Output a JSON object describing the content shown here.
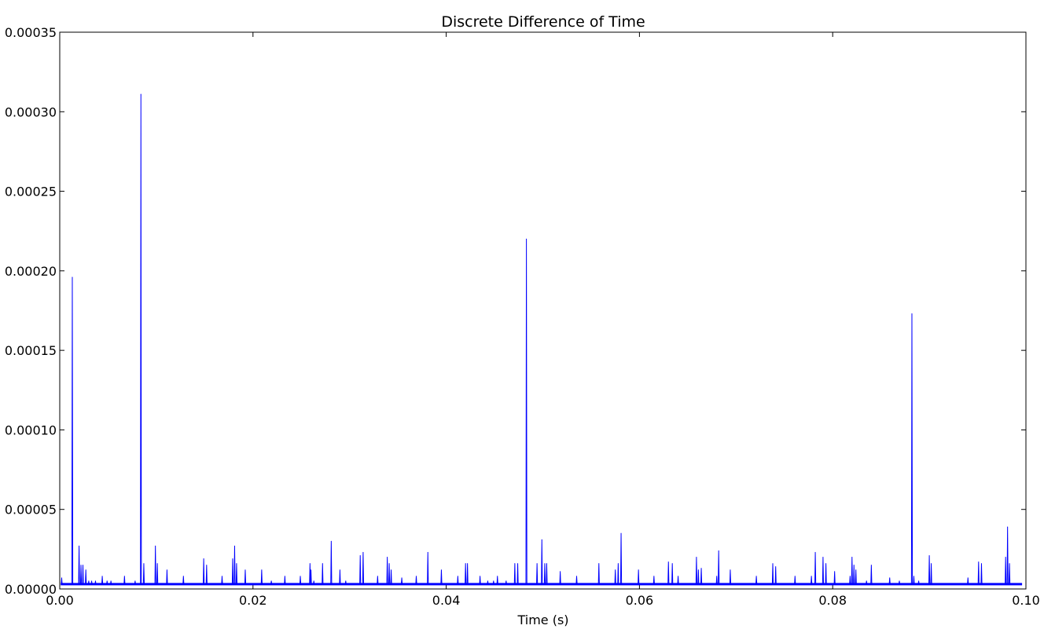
{
  "chart_data": {
    "type": "line",
    "title": "Discrete Difference of Time",
    "xlabel": "Time (s)",
    "ylabel": "",
    "xlim": [
      0.0,
      0.1
    ],
    "ylim": [
      0.0,
      0.00035
    ],
    "x_ticks": [
      0.0,
      0.02,
      0.04,
      0.06,
      0.08,
      0.1
    ],
    "x_tick_labels": [
      "0.00",
      "0.02",
      "0.04",
      "0.06",
      "0.08",
      "0.10"
    ],
    "y_ticks": [
      0.0,
      5e-05,
      0.0001,
      0.00015,
      0.0002,
      0.00025,
      0.0003,
      0.00035
    ],
    "y_tick_labels": [
      "0.00000",
      "0.00005",
      "0.00010",
      "0.00015",
      "0.00020",
      "0.00025",
      "0.00030",
      "0.00035"
    ],
    "grid": false,
    "line_color": "#0000ff",
    "baseline": 3e-06,
    "series": [
      {
        "x": [
          0.0002,
          0.0013,
          0.002,
          0.0022,
          0.0024,
          0.0027,
          0.003,
          0.0033,
          0.0037,
          0.0044,
          0.0049,
          0.0053,
          0.0067,
          0.0078,
          0.0084,
          0.0087,
          0.0099,
          0.0101,
          0.0111,
          0.0128,
          0.0149,
          0.0152,
          0.0168,
          0.0179,
          0.0181,
          0.0183,
          0.0192,
          0.0209,
          0.0219,
          0.0233,
          0.0249,
          0.0259,
          0.026,
          0.0263,
          0.0272,
          0.0281,
          0.029,
          0.0296,
          0.0311,
          0.0314,
          0.0329,
          0.0339,
          0.0341,
          0.0343,
          0.0354,
          0.0369,
          0.0381,
          0.0395,
          0.0412,
          0.042,
          0.0422,
          0.0435,
          0.0443,
          0.0449,
          0.0453,
          0.0462,
          0.0471,
          0.0474,
          0.0483,
          0.0494,
          0.0499,
          0.0502,
          0.0504,
          0.0518,
          0.0535,
          0.0558,
          0.0575,
          0.0578,
          0.0581,
          0.0599,
          0.0615,
          0.063,
          0.0634,
          0.064,
          0.0659,
          0.0661,
          0.0664,
          0.068,
          0.0682,
          0.0694,
          0.0721,
          0.0738,
          0.0741,
          0.0761,
          0.0778,
          0.0782,
          0.079,
          0.0793,
          0.0802,
          0.0818,
          0.082,
          0.0822,
          0.0824,
          0.0835,
          0.084,
          0.0859,
          0.0869,
          0.0882,
          0.0884,
          0.0889,
          0.09,
          0.0902,
          0.094,
          0.0951,
          0.0954,
          0.0979,
          0.0981,
          0.0983
        ],
        "y": [
          7e-06,
          0.000196,
          2.7e-05,
          1.5e-05,
          1.5e-05,
          1.2e-05,
          5e-06,
          5e-06,
          5e-06,
          8e-06,
          5e-06,
          5e-06,
          8e-06,
          5e-06,
          0.000311,
          1.6e-05,
          2.7e-05,
          1.6e-05,
          1.2e-05,
          8e-06,
          1.9e-05,
          1.5e-05,
          8e-06,
          1.9e-05,
          2.7e-05,
          1.6e-05,
          1.2e-05,
          1.2e-05,
          5e-06,
          8e-06,
          8e-06,
          1.6e-05,
          1.2e-05,
          5e-06,
          1.6e-05,
          3e-05,
          1.2e-05,
          5e-06,
          2.1e-05,
          2.3e-05,
          8e-06,
          2e-05,
          1.6e-05,
          1.2e-05,
          7e-06,
          8e-06,
          2.3e-05,
          1.2e-05,
          8e-06,
          1.6e-05,
          1.6e-05,
          8e-06,
          5e-06,
          5e-06,
          8e-06,
          5e-06,
          1.6e-05,
          1.6e-05,
          0.00022,
          1.6e-05,
          3.1e-05,
          1.6e-05,
          1.6e-05,
          1.1e-05,
          8e-06,
          1.6e-05,
          1.2e-05,
          1.6e-05,
          3.5e-05,
          1.2e-05,
          8e-06,
          1.7e-05,
          1.6e-05,
          8e-06,
          2e-05,
          1.2e-05,
          1.3e-05,
          8e-06,
          2.4e-05,
          1.2e-05,
          8e-06,
          1.6e-05,
          1.4e-05,
          8e-06,
          8e-06,
          2.3e-05,
          2e-05,
          1.6e-05,
          1.1e-05,
          8e-06,
          2e-05,
          1.5e-05,
          1.2e-05,
          5e-06,
          1.5e-05,
          7e-06,
          5e-06,
          0.000173,
          8e-06,
          5e-06,
          2.1e-05,
          1.6e-05,
          7e-06,
          1.7e-05,
          1.6e-05,
          2e-05,
          3.9e-05,
          1.6e-05
        ]
      }
    ]
  }
}
